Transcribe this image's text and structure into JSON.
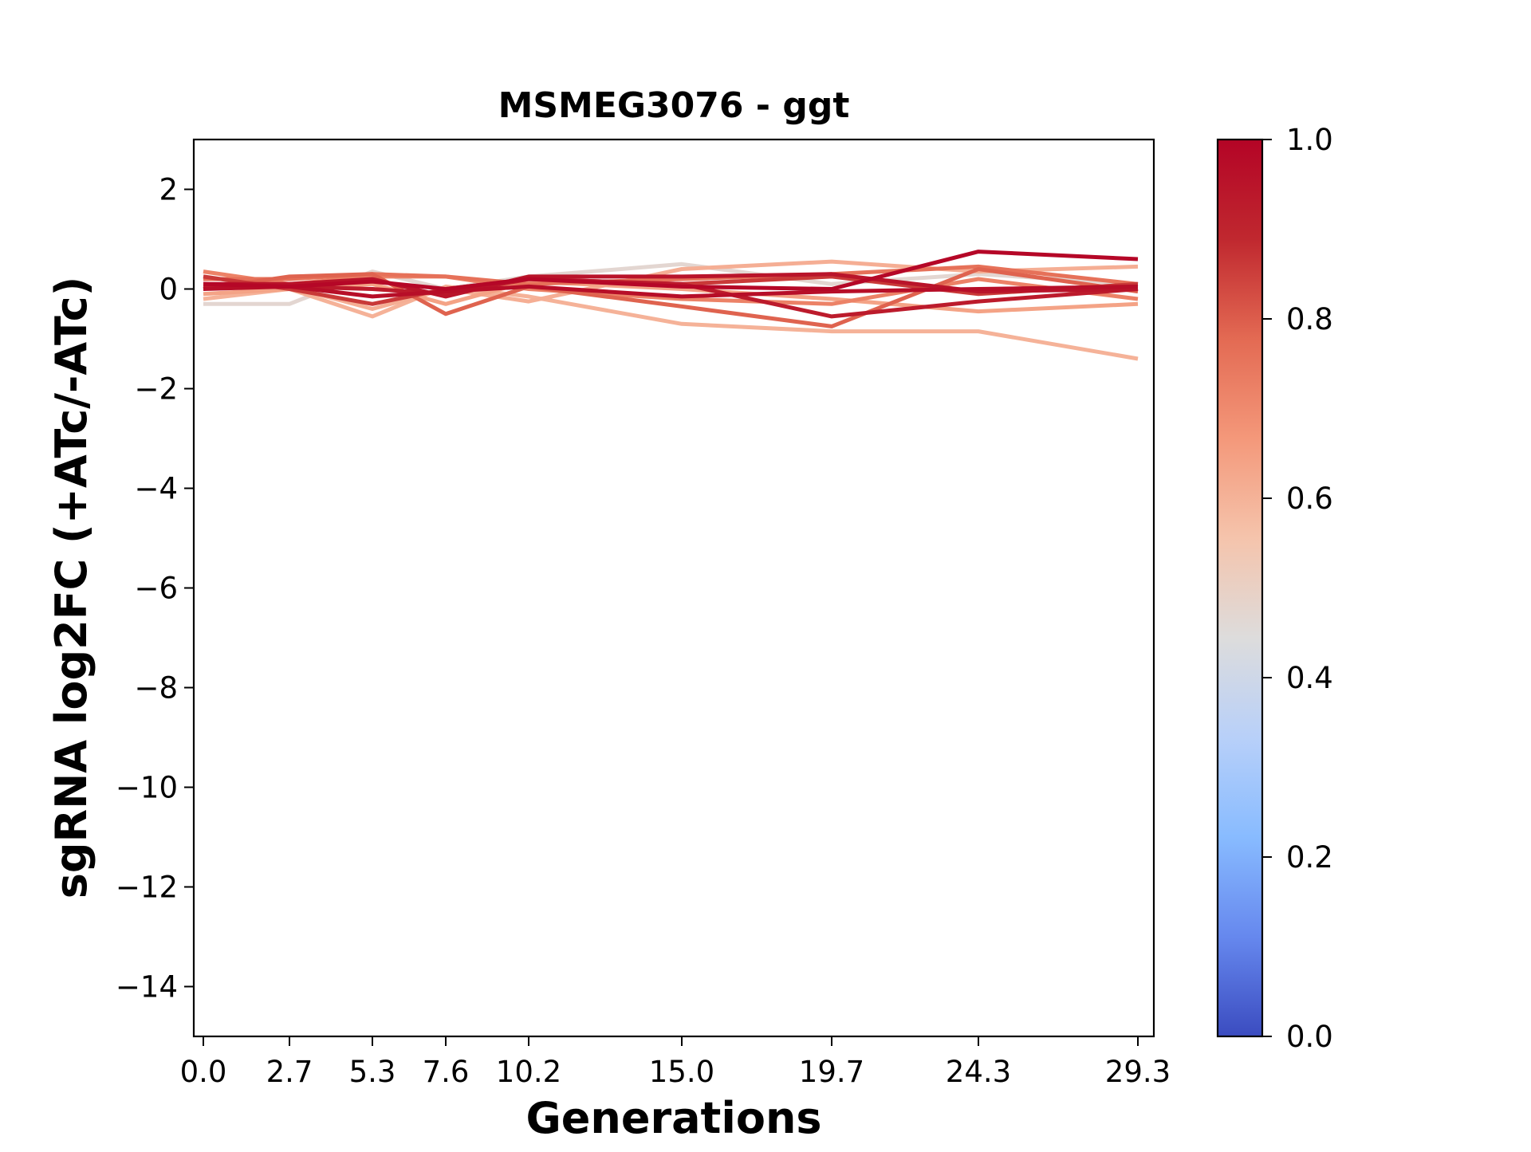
{
  "chart_data": {
    "type": "line",
    "title": "MSMEG3076 - ggt",
    "xlabel": "Generations",
    "ylabel": "sgRNA log2FC (+ATc/-ATc)",
    "x": [
      0.0,
      2.7,
      5.3,
      7.6,
      10.2,
      15.0,
      19.7,
      24.3,
      29.3
    ],
    "x_tick_labels": [
      "0.0",
      "2.7",
      "5.3",
      "7.6",
      "10.2",
      "15.0",
      "19.7",
      "24.3",
      "29.3"
    ],
    "xlim": [
      -0.3,
      29.8
    ],
    "ylim": [
      -15,
      3
    ],
    "y_ticks": [
      2,
      0,
      -2,
      -4,
      -6,
      -8,
      -10,
      -12,
      -14
    ],
    "y_tick_labels": [
      "2",
      "0",
      "−2",
      "−4",
      "−6",
      "−8",
      "−10",
      "−12",
      "−14"
    ],
    "grid": false,
    "colormap": "coolwarm",
    "colorbar": {
      "range": [
        0.0,
        1.0
      ],
      "ticks": [
        0.0,
        0.2,
        0.4,
        0.6,
        0.8,
        1.0
      ],
      "tick_labels": [
        "0.0",
        "0.2",
        "0.4",
        "0.6",
        "0.8",
        "1.0"
      ],
      "stops": [
        "#3b4cc0",
        "#6688ee",
        "#88bbff",
        "#b8d0f9",
        "#dddcdc",
        "#f5c4ac",
        "#f4987a",
        "#e36a53",
        "#c0282f",
        "#b40426"
      ]
    },
    "series": [
      {
        "color_value": 0.47,
        "values": [
          -0.3,
          -0.3,
          0.35,
          0.0,
          0.25,
          0.5,
          0.1,
          0.3,
          0.1
        ]
      },
      {
        "color_value": 0.6,
        "values": [
          -0.2,
          0.0,
          -0.55,
          0.05,
          -0.15,
          -0.7,
          -0.85,
          -0.85,
          -1.4
        ]
      },
      {
        "color_value": 0.61,
        "values": [
          0.1,
          0.05,
          -0.4,
          0.0,
          -0.25,
          0.4,
          0.55,
          0.35,
          0.45
        ]
      },
      {
        "color_value": 0.64,
        "values": [
          -0.1,
          0.0,
          0.1,
          -0.3,
          0.15,
          0.0,
          -0.2,
          -0.45,
          -0.3
        ]
      },
      {
        "color_value": 0.72,
        "values": [
          0.35,
          0.1,
          0.25,
          0.25,
          0.0,
          -0.2,
          -0.3,
          0.2,
          -0.2
        ]
      },
      {
        "color_value": 0.76,
        "values": [
          0.2,
          0.2,
          0.3,
          0.25,
          0.1,
          0.2,
          0.3,
          0.45,
          0.1
        ]
      },
      {
        "color_value": 0.79,
        "values": [
          0.0,
          0.25,
          0.3,
          -0.5,
          0.05,
          -0.35,
          -0.75,
          0.4,
          -0.05
        ]
      },
      {
        "color_value": 0.86,
        "values": [
          0.25,
          0.0,
          -0.3,
          0.0,
          0.2,
          0.1,
          0.25,
          -0.1,
          0.1
        ]
      },
      {
        "color_value": 0.93,
        "values": [
          0.05,
          0.05,
          0.0,
          -0.1,
          0.2,
          0.1,
          -0.55,
          -0.25,
          0.0
        ]
      },
      {
        "color_value": 0.95,
        "values": [
          0.1,
          0.1,
          0.2,
          -0.15,
          0.25,
          0.25,
          0.3,
          -0.05,
          0.0
        ]
      },
      {
        "color_value": 0.97,
        "values": [
          0.0,
          0.05,
          -0.15,
          -0.05,
          0.05,
          -0.15,
          -0.05,
          0.0,
          0.05
        ]
      },
      {
        "color_value": 0.99,
        "values": [
          0.1,
          0.05,
          0.15,
          0.0,
          0.2,
          0.05,
          0.0,
          0.75,
          0.6
        ]
      }
    ]
  }
}
